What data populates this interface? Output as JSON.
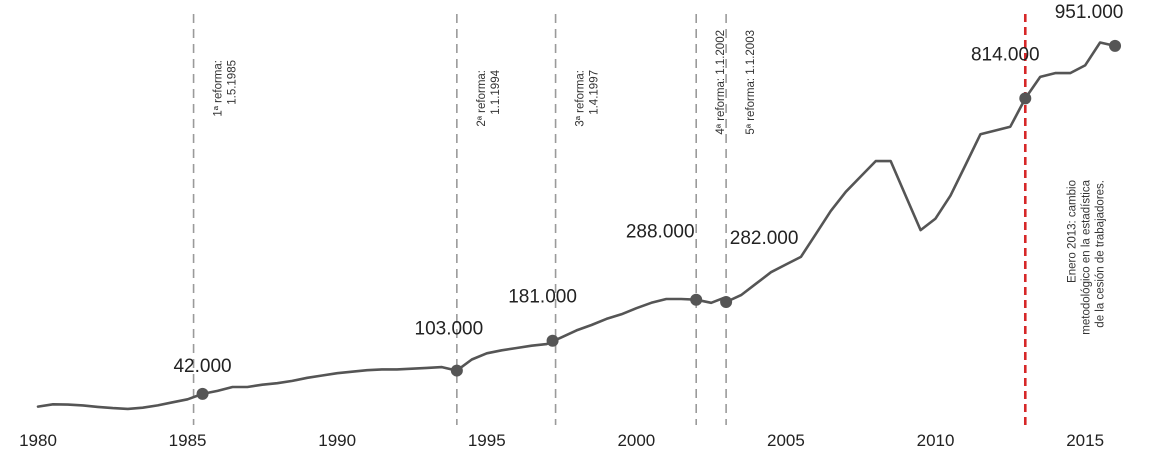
{
  "chart_data": {
    "type": "line",
    "title": "",
    "xlabel": "",
    "ylabel": "",
    "xlim": [
      1980,
      2016.5
    ],
    "ylim": [
      0,
      1050000
    ],
    "grid": false,
    "x_ticks": [
      "1980",
      "1985",
      "1990",
      "1995",
      "2000",
      "2005",
      "2010",
      "2015"
    ],
    "series": [
      {
        "points": [
          [
            1980.0,
            9000
          ],
          [
            1980.5,
            15000
          ],
          [
            1981.0,
            14000
          ],
          [
            1981.5,
            12000
          ],
          [
            1982.0,
            8000
          ],
          [
            1982.5,
            5000
          ],
          [
            1983.0,
            3000
          ],
          [
            1983.5,
            6000
          ],
          [
            1984.0,
            12000
          ],
          [
            1984.5,
            20000
          ],
          [
            1985.0,
            28000
          ],
          [
            1985.5,
            42000
          ],
          [
            1986.0,
            50000
          ],
          [
            1986.5,
            60000
          ],
          [
            1987.0,
            60000
          ],
          [
            1987.5,
            66000
          ],
          [
            1988.0,
            70000
          ],
          [
            1988.5,
            76000
          ],
          [
            1989.0,
            84000
          ],
          [
            1989.5,
            90000
          ],
          [
            1990.0,
            96000
          ],
          [
            1990.5,
            100000
          ],
          [
            1991.0,
            104000
          ],
          [
            1991.5,
            106000
          ],
          [
            1992.0,
            106000
          ],
          [
            1992.5,
            108000
          ],
          [
            1993.0,
            110000
          ],
          [
            1993.5,
            112000
          ],
          [
            1994.0,
            103000
          ],
          [
            1994.5,
            132000
          ],
          [
            1995.0,
            148000
          ],
          [
            1995.5,
            156000
          ],
          [
            1996.0,
            162000
          ],
          [
            1996.5,
            168000
          ],
          [
            1997.0,
            172000
          ],
          [
            1997.5,
            190000
          ],
          [
            1998.0,
            208000
          ],
          [
            1998.5,
            222000
          ],
          [
            1999.0,
            238000
          ],
          [
            1999.5,
            250000
          ],
          [
            2000.0,
            266000
          ],
          [
            2000.5,
            280000
          ],
          [
            2001.0,
            290000
          ],
          [
            2001.5,
            290000
          ],
          [
            2002.0,
            288000
          ],
          [
            2002.5,
            280000
          ],
          [
            2002.9,
            292000
          ],
          [
            2003.0,
            282000
          ],
          [
            2003.5,
            300000
          ],
          [
            2004.0,
            330000
          ],
          [
            2004.5,
            360000
          ],
          [
            2005.0,
            380000
          ],
          [
            2005.5,
            400000
          ],
          [
            2006.0,
            460000
          ],
          [
            2006.5,
            520000
          ],
          [
            2007.0,
            570000
          ],
          [
            2007.5,
            610000
          ],
          [
            2008.0,
            650000
          ],
          [
            2008.5,
            650000
          ],
          [
            2009.0,
            560000
          ],
          [
            2009.5,
            470000
          ],
          [
            2010.0,
            500000
          ],
          [
            2010.5,
            560000
          ],
          [
            2011.0,
            640000
          ],
          [
            2011.5,
            720000
          ],
          [
            2012.0,
            730000
          ],
          [
            2012.5,
            740000
          ],
          [
            2013.0,
            814000
          ],
          [
            2013.5,
            870000
          ],
          [
            2014.0,
            880000
          ],
          [
            2014.5,
            880000
          ],
          [
            2015.0,
            900000
          ],
          [
            2015.5,
            960000
          ],
          [
            2016.0,
            951000
          ]
        ]
      }
    ],
    "markers": [
      {
        "x": 1985.5,
        "y": 42000,
        "label": "42.000"
      },
      {
        "x": 1994.0,
        "y": 103000,
        "label": "103.000"
      },
      {
        "x": 1997.2,
        "y": 181000,
        "label": "181.000"
      },
      {
        "x": 2002.0,
        "y": 288000,
        "label": "288.000"
      },
      {
        "x": 2003.0,
        "y": 282000,
        "label": "282.000"
      },
      {
        "x": 2013.0,
        "y": 814000,
        "label": "814.000"
      },
      {
        "x": 2016.0,
        "y": 951000,
        "label": "951.000"
      }
    ],
    "vlines": [
      {
        "x": 1985.2,
        "lines": [
          "1ª reforma:",
          "1.5.1985"
        ],
        "color": "#9a9a9a"
      },
      {
        "x": 1994.0,
        "lines": [
          "2ª reforma:",
          "1.1.1994"
        ],
        "color": "#9a9a9a"
      },
      {
        "x": 1997.3,
        "lines": [
          "3ª reforma:",
          "1.4.1997"
        ],
        "color": "#9a9a9a"
      },
      {
        "x": 2002.0,
        "lines": [
          "4ª reforma: 1.1.2002"
        ],
        "color": "#9a9a9a"
      },
      {
        "x": 2003.0,
        "lines": [
          "5ª reforma: 1.1.2003"
        ],
        "color": "#9a9a9a"
      },
      {
        "x": 2013.0,
        "lines": [
          "Enero 2013: cambio",
          "metodológico en la estadística",
          "de la cesión de trabajadores."
        ],
        "color": "#d62728"
      }
    ],
    "colors": {
      "line": "#555555",
      "marker": "#555555",
      "highlight": "#d62728"
    }
  }
}
